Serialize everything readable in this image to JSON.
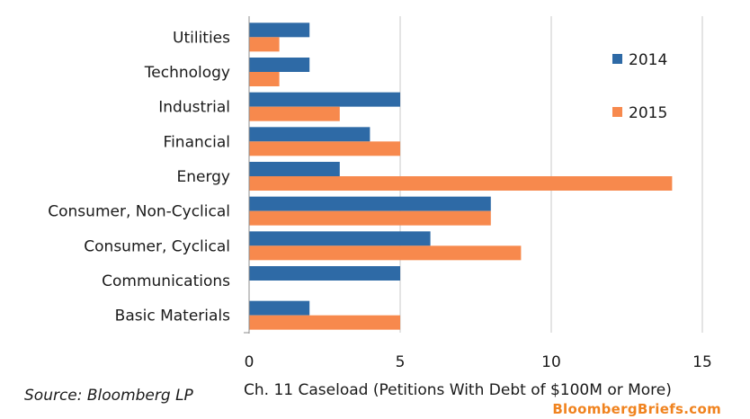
{
  "chart_data": {
    "type": "bar",
    "orientation": "horizontal",
    "categories": [
      "Utilities",
      "Technology",
      "Industrial",
      "Financial",
      "Energy",
      "Consumer, Non-Cyclical",
      "Consumer, Cyclical",
      "Communications",
      "Basic Materials"
    ],
    "series": [
      {
        "name": "2014",
        "color": "#2e6aa6",
        "values": [
          2,
          2,
          5,
          4,
          3,
          8,
          6,
          5,
          2
        ]
      },
      {
        "name": "2015",
        "color": "#f7894d",
        "values": [
          1,
          1,
          3,
          5,
          14,
          8,
          9,
          0,
          5
        ]
      }
    ],
    "xlabel": "Ch. 11 Caseload (Petitions With Debt of $100M or More)",
    "xlim": [
      0,
      15
    ],
    "xticks": [
      "0",
      "5",
      "10",
      "15"
    ],
    "grid": "vertical",
    "legend_position": "right",
    "source": "Source: Bloomberg LP",
    "brand": "BloombergBriefs.com"
  }
}
